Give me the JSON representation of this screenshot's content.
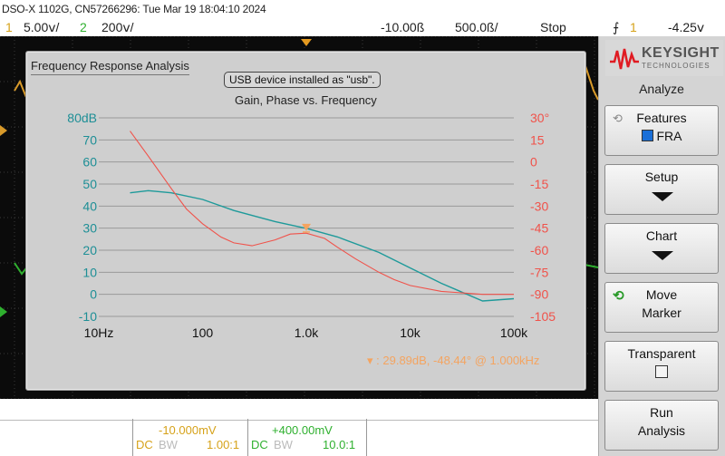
{
  "header": {
    "title": "DSO-X 1102G, CN57266296: Tue Mar 19 18:04:10 2024",
    "ch1_num": "1",
    "ch1_scale": "5.00ⅴ/",
    "ch2_num": "2",
    "ch2_scale": "200ⅴ/",
    "time_delay": "-10.00ß",
    "time_scale": "500.0ß/",
    "run_state": "Stop",
    "trigger_icon": "⨍",
    "trigger_ch": "1",
    "trigger_level": "-4.25ⅴ"
  },
  "fra_panel": {
    "title": "Frequency Response Analysis",
    "notice": "USB device installed as \"usb\".",
    "subtitle": "Gain, Phase vs. Frequency",
    "marker_readout": "29.89dB, -48.44° @ 1.000kHz"
  },
  "chart_data": {
    "type": "line",
    "title": "Gain, Phase vs. Frequency",
    "x_scale": "log",
    "x_ticks": [
      "10Hz",
      "100",
      "1.0k",
      "10k",
      "100k"
    ],
    "xlim": [
      10,
      100000
    ],
    "y_left_ticks": [
      "80dB",
      "70",
      "60",
      "50",
      "40",
      "30",
      "20",
      "10",
      "0",
      "-10"
    ],
    "ylim_left": [
      -10,
      80
    ],
    "y_right_ticks": [
      "30°",
      "15",
      "0",
      "-15",
      "-30",
      "-45",
      "-60",
      "-75",
      "-90",
      "-105"
    ],
    "ylim_right": [
      -105,
      30
    ],
    "grid": true,
    "series": [
      {
        "axis": "left",
        "color": "#1e9a9a",
        "points": [
          [
            20,
            46
          ],
          [
            30,
            47
          ],
          [
            50,
            46
          ],
          [
            100,
            43
          ],
          [
            200,
            38
          ],
          [
            500,
            33
          ],
          [
            1000,
            29.89
          ],
          [
            2000,
            26
          ],
          [
            5000,
            19
          ],
          [
            10000,
            12
          ],
          [
            20000,
            5
          ],
          [
            50000,
            -3
          ],
          [
            100000,
            -2
          ]
        ]
      },
      {
        "axis": "right",
        "color": "#f0524a",
        "points": [
          [
            20,
            21
          ],
          [
            30,
            4
          ],
          [
            50,
            -18
          ],
          [
            70,
            -32
          ],
          [
            100,
            -42
          ],
          [
            150,
            -51
          ],
          [
            200,
            -55
          ],
          [
            300,
            -57
          ],
          [
            500,
            -53
          ],
          [
            700,
            -49
          ],
          [
            1000,
            -48.44
          ],
          [
            1500,
            -52
          ],
          [
            2000,
            -58
          ],
          [
            3000,
            -66
          ],
          [
            5000,
            -75
          ],
          [
            7000,
            -80
          ],
          [
            10000,
            -84
          ],
          [
            20000,
            -88
          ],
          [
            50000,
            -90
          ],
          [
            100000,
            -90
          ]
        ]
      }
    ],
    "marker": {
      "freq": 1000,
      "gain": 29.89,
      "phase": -48.44
    }
  },
  "softkeys": {
    "brand": "KEYSIGHT",
    "brand_sub": "TECHNOLOGIES",
    "menu_title": "Analyze",
    "features_label": "Features",
    "features_value": "FRA",
    "setup_label": "Setup",
    "chart_label": "Chart",
    "move_label": "Move",
    "marker_label": "Marker",
    "transparent_label": "Transparent",
    "run_label": "Run",
    "analysis_label": "Analysis"
  },
  "bottom": {
    "ch1_offset": "-10.000mV",
    "ch1_coupling": "DC",
    "ch1_bw": "BW",
    "ch1_probe": "1.00:1",
    "ch2_offset": "+400.00mV",
    "ch2_coupling": "DC",
    "ch2_bw": "BW",
    "ch2_probe": "10.0:1"
  }
}
